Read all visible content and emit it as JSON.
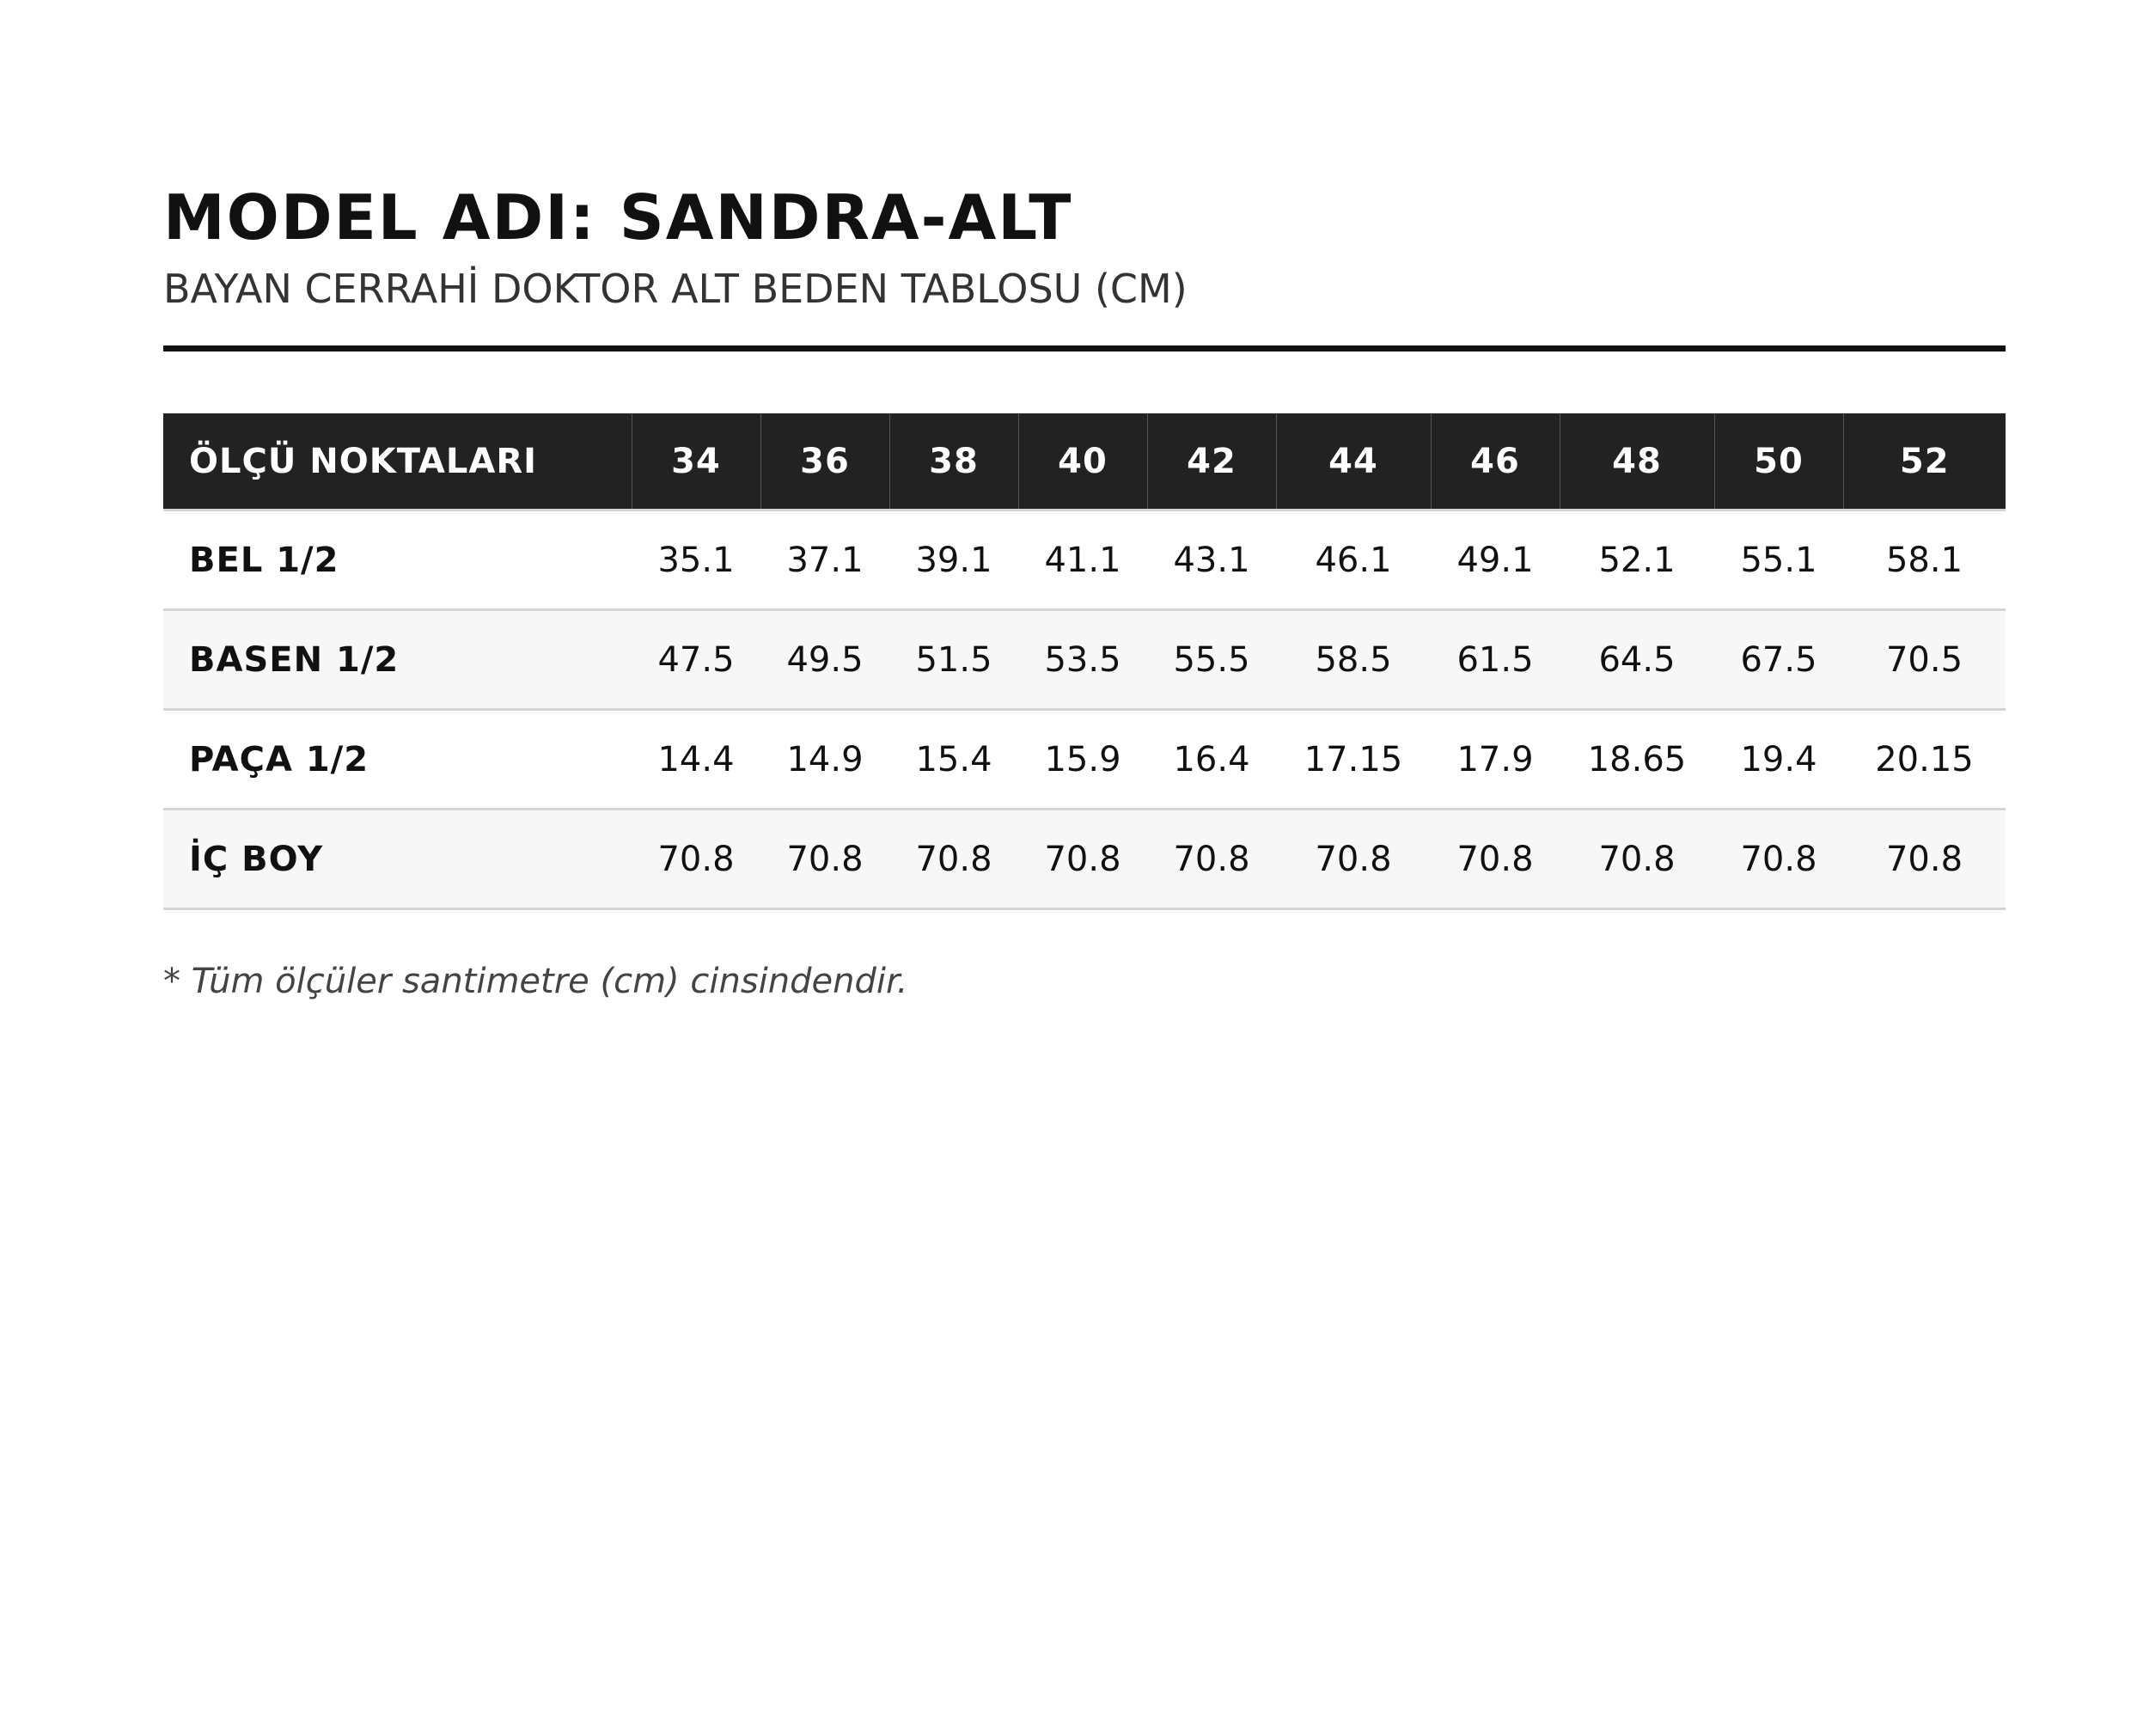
{
  "title": "MODEL ADI: SANDRA-ALT",
  "subtitle": "BAYAN CERRAHİ DOKTOR ALT BEDEN TABLOSU (CM)",
  "table": {
    "header_label": "ÖLÇÜ NOKTALARI",
    "sizes": [
      "34",
      "36",
      "38",
      "40",
      "42",
      "44",
      "46",
      "48",
      "50",
      "52"
    ],
    "rows": [
      {
        "label": "BEL 1/2",
        "values": [
          "35.1",
          "37.1",
          "39.1",
          "41.1",
          "43.1",
          "46.1",
          "49.1",
          "52.1",
          "55.1",
          "58.1"
        ]
      },
      {
        "label": "BASEN 1/2",
        "values": [
          "47.5",
          "49.5",
          "51.5",
          "53.5",
          "55.5",
          "58.5",
          "61.5",
          "64.5",
          "67.5",
          "70.5"
        ]
      },
      {
        "label": "PAÇA 1/2",
        "values": [
          "14.4",
          "14.9",
          "15.4",
          "15.9",
          "16.4",
          "17.15",
          "17.9",
          "18.65",
          "19.4",
          "20.15"
        ]
      },
      {
        "label": "İÇ BOY",
        "values": [
          "70.8",
          "70.8",
          "70.8",
          "70.8",
          "70.8",
          "70.8",
          "70.8",
          "70.8",
          "70.8",
          "70.8"
        ]
      }
    ]
  },
  "note": "* Tüm ölçüler santimetre (cm) cinsindendir.",
  "colors": {
    "header_bg": "#222222",
    "header_text": "#ffffff",
    "alt_row_bg": "#f7f7f7",
    "row_divider": "#d4d4d4",
    "rule": "#111111"
  }
}
